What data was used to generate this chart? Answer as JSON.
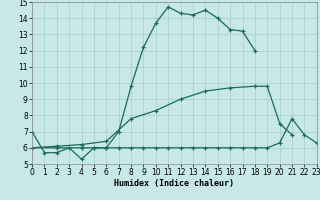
{
  "bg_color": "#c8e8e8",
  "grid_color": "#a8cccc",
  "line_color": "#1a6b5a",
  "xlabel": "Humidex (Indice chaleur)",
  "xlim": [
    0,
    23
  ],
  "ylim": [
    5,
    15
  ],
  "xticks": [
    0,
    1,
    2,
    3,
    4,
    5,
    6,
    7,
    8,
    9,
    10,
    11,
    12,
    13,
    14,
    15,
    16,
    17,
    18,
    19,
    20,
    21,
    22,
    23
  ],
  "yticks": [
    5,
    6,
    7,
    8,
    9,
    10,
    11,
    12,
    13,
    14,
    15
  ],
  "line1_x": [
    0,
    1,
    2,
    3,
    4,
    5,
    6,
    7,
    8,
    9,
    10,
    11,
    12,
    13,
    14,
    15,
    16,
    17,
    18,
    19
  ],
  "line1_y": [
    7.0,
    5.7,
    5.7,
    6.0,
    5.3,
    6.0,
    6.0,
    7.0,
    9.8,
    12.2,
    13.7,
    14.7,
    14.3,
    14.2,
    14.5,
    14.0,
    13.3,
    13.2,
    12.0,
    null
  ],
  "line2_x": [
    0,
    2,
    4,
    6,
    8,
    10,
    12,
    14,
    16,
    18,
    19,
    20,
    21
  ],
  "line2_y": [
    6.0,
    6.1,
    6.2,
    6.4,
    7.8,
    8.3,
    9.0,
    9.5,
    9.7,
    9.8,
    9.8,
    7.5,
    6.8
  ],
  "line3_x": [
    0,
    2,
    4,
    5,
    6,
    7,
    8,
    9,
    10,
    11,
    12,
    13,
    14,
    15,
    16,
    17,
    18,
    19,
    20,
    21,
    22,
    23
  ],
  "line3_y": [
    6.0,
    6.0,
    6.0,
    6.0,
    6.0,
    6.0,
    6.0,
    6.0,
    6.0,
    6.0,
    6.0,
    6.0,
    6.0,
    6.0,
    6.0,
    6.0,
    6.0,
    6.0,
    6.3,
    7.8,
    6.8,
    6.3
  ]
}
